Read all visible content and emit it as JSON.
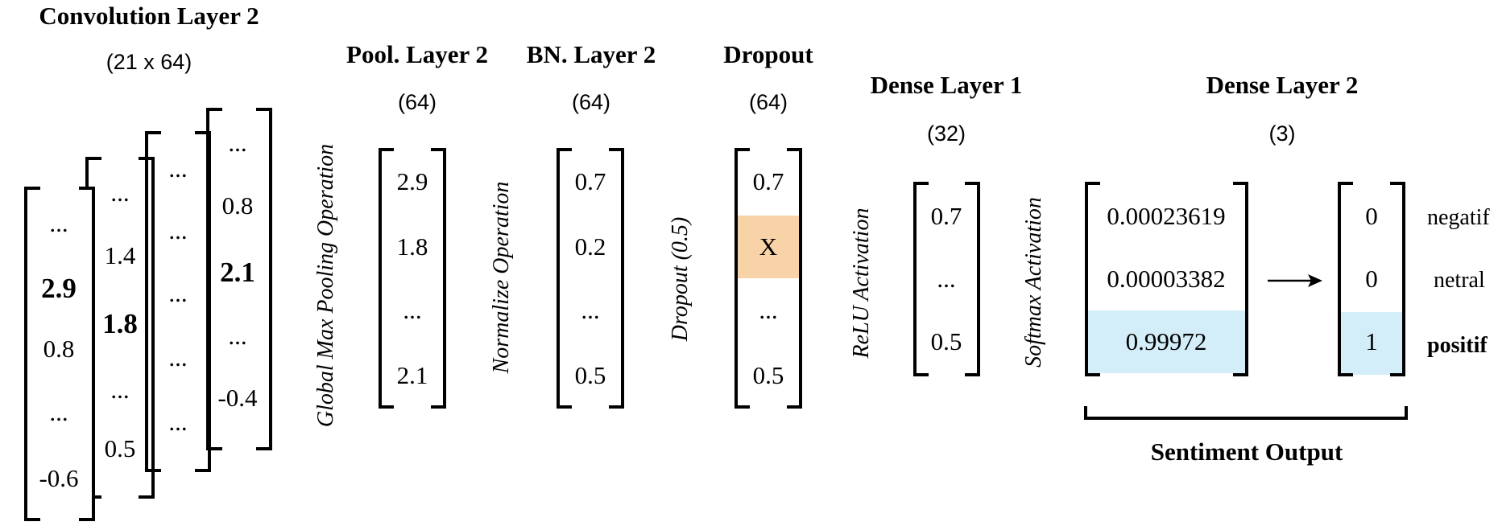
{
  "conv": {
    "title": "Convolution Layer 2",
    "dims": "(21 x 64)",
    "columns": [
      [
        "...",
        "2.9",
        "0.8",
        "...",
        "-0.6"
      ],
      [
        "...",
        "1.4",
        "1.8",
        "...",
        "0.5"
      ],
      [
        "...",
        "...",
        "...",
        "...",
        "..."
      ],
      [
        "...",
        "0.8",
        "2.1",
        "...",
        "-0.4"
      ]
    ],
    "bold_values": [
      "2.9",
      "1.8",
      "2.1"
    ]
  },
  "ops": {
    "pool": "Global Max Pooling Operation",
    "normalize": "Normalize Operation",
    "dropout": "Dropout (0.5)",
    "relu": "ReLU Activation",
    "softmax": "Softmax Activation"
  },
  "pool": {
    "title": "Pool. Layer 2",
    "dims": "(64)",
    "values": [
      "2.9",
      "1.8",
      "...",
      "2.1"
    ]
  },
  "bn": {
    "title": "BN. Layer 2",
    "dims": "(64)",
    "values": [
      "0.7",
      "0.2",
      "...",
      "0.5"
    ]
  },
  "dropout": {
    "title": "Dropout",
    "dims": "(64)",
    "values": [
      "0.7",
      "X",
      "...",
      "0.5"
    ],
    "dropped_color": "#f9d3a8"
  },
  "dense1": {
    "title": "Dense Layer 1",
    "dims": "(32)",
    "values": [
      "0.7",
      "...",
      "0.5"
    ]
  },
  "dense2": {
    "title": "Dense Layer 2",
    "dims": "(3)",
    "probs": [
      "0.00023619",
      "0.00003382",
      "0.99972"
    ],
    "onehot": [
      "0",
      "0",
      "1"
    ],
    "highlight_color": "#d3eef9"
  },
  "output": {
    "labels": [
      "negatif",
      "netral",
      "positif"
    ],
    "caption": "Sentiment Output"
  }
}
